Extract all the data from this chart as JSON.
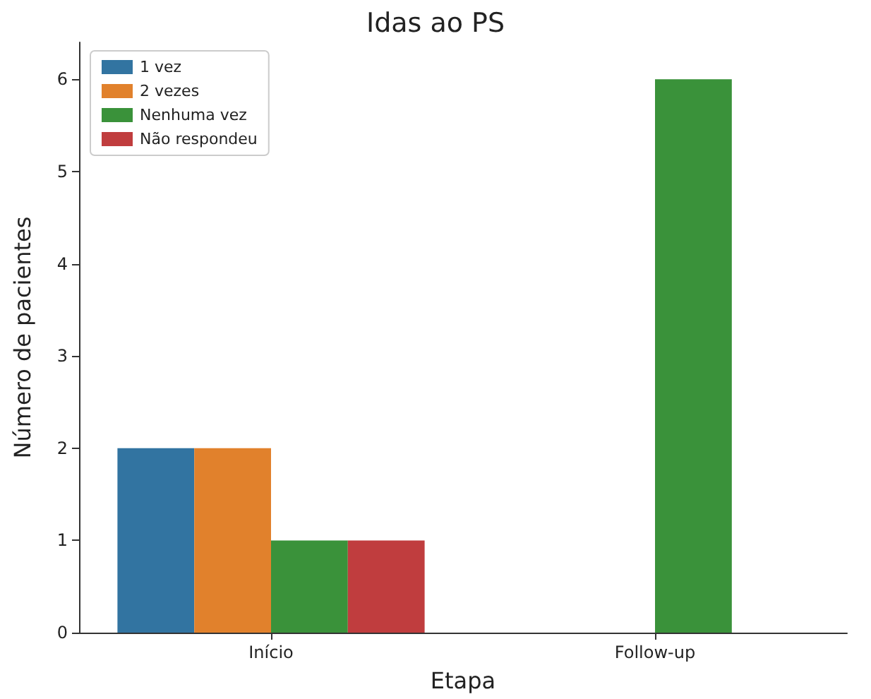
{
  "chart_data": {
    "type": "bar",
    "title": "Idas ao PS",
    "xlabel": "Etapa",
    "ylabel": "Número de pacientes",
    "categories": [
      "Início",
      "Follow-up"
    ],
    "series": [
      {
        "name": "1 vez",
        "color": "#3274a1",
        "values": [
          2,
          null
        ]
      },
      {
        "name": "2 vezes",
        "color": "#e1812c",
        "values": [
          2,
          null
        ]
      },
      {
        "name": "Nenhuma vez",
        "color": "#3a923a",
        "values": [
          1,
          6
        ]
      },
      {
        "name": "Não respondeu",
        "color": "#c03d3e",
        "values": [
          1,
          null
        ]
      }
    ],
    "ylim": [
      0,
      6.4
    ],
    "yticks": [
      0,
      1,
      2,
      3,
      4,
      5,
      6
    ],
    "grid": false,
    "legend": "top left"
  }
}
